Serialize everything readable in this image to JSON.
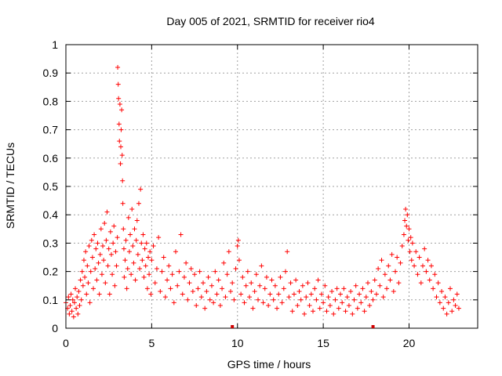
{
  "chart_data": {
    "type": "scatter",
    "title": "Day 005 of 2021, SRMTID for receiver rio4",
    "xlabel": "GPS time / hours",
    "ylabel": "SRMTID / TECUs",
    "xlim": [
      0,
      24
    ],
    "ylim": [
      0,
      1
    ],
    "xticks": [
      "0",
      "5",
      "10",
      "15",
      "20"
    ],
    "xtick_values": [
      0,
      5,
      10,
      15,
      20
    ],
    "yticks": [
      "0",
      "0.1",
      "0.2",
      "0.3",
      "0.4",
      "0.5",
      "0.6",
      "0.7",
      "0.8",
      "0.9",
      "1"
    ],
    "ytick_values": [
      0,
      0.1,
      0.2,
      0.3,
      0.4,
      0.5,
      0.6,
      0.7,
      0.8,
      0.9,
      1.0
    ],
    "grid": true,
    "marker": "+",
    "color": "#ff0000",
    "axis_markers_x": [
      9.7,
      17.9
    ],
    "series": [
      {
        "name": "SRMTID",
        "points": [
          [
            0.0,
            0.09
          ],
          [
            0.1,
            0.07
          ],
          [
            0.15,
            0.11
          ],
          [
            0.2,
            0.05
          ],
          [
            0.25,
            0.08
          ],
          [
            0.3,
            0.12
          ],
          [
            0.35,
            0.06
          ],
          [
            0.4,
            0.1
          ],
          [
            0.45,
            0.04
          ],
          [
            0.5,
            0.09
          ],
          [
            0.55,
            0.14
          ],
          [
            0.6,
            0.07
          ],
          [
            0.65,
            0.11
          ],
          [
            0.7,
            0.05
          ],
          [
            0.75,
            0.13
          ],
          [
            0.8,
            0.08
          ],
          [
            0.85,
            0.17
          ],
          [
            0.9,
            0.1
          ],
          [
            0.95,
            0.2
          ],
          [
            1.0,
            0.15
          ],
          [
            1.05,
            0.24
          ],
          [
            1.1,
            0.18
          ],
          [
            1.15,
            0.27
          ],
          [
            1.2,
            0.12
          ],
          [
            1.25,
            0.22
          ],
          [
            1.3,
            0.16
          ],
          [
            1.35,
            0.29
          ],
          [
            1.4,
            0.09
          ],
          [
            1.45,
            0.2
          ],
          [
            1.5,
            0.31
          ],
          [
            1.55,
            0.25
          ],
          [
            1.6,
            0.14
          ],
          [
            1.65,
            0.33
          ],
          [
            1.7,
            0.21
          ],
          [
            1.75,
            0.28
          ],
          [
            1.8,
            0.17
          ],
          [
            1.85,
            0.3
          ],
          [
            1.9,
            0.23
          ],
          [
            1.95,
            0.12
          ],
          [
            2.0,
            0.26
          ],
          [
            2.05,
            0.35
          ],
          [
            2.1,
            0.19
          ],
          [
            2.15,
            0.29
          ],
          [
            2.2,
            0.24
          ],
          [
            2.25,
            0.37
          ],
          [
            2.3,
            0.16
          ],
          [
            2.35,
            0.31
          ],
          [
            2.4,
            0.41
          ],
          [
            2.45,
            0.22
          ],
          [
            2.5,
            0.28
          ],
          [
            2.55,
            0.12
          ],
          [
            2.6,
            0.34
          ],
          [
            2.65,
            0.26
          ],
          [
            2.7,
            0.19
          ],
          [
            2.75,
            0.3
          ],
          [
            2.8,
            0.36
          ],
          [
            2.85,
            0.15
          ],
          [
            2.9,
            0.27
          ],
          [
            2.95,
            0.22
          ],
          [
            3.0,
            0.32
          ],
          [
            3.02,
            0.92
          ],
          [
            3.05,
            0.86
          ],
          [
            3.07,
            0.81
          ],
          [
            3.1,
            0.72
          ],
          [
            3.12,
            0.66
          ],
          [
            3.15,
            0.79
          ],
          [
            3.18,
            0.58
          ],
          [
            3.2,
            0.64
          ],
          [
            3.22,
            0.7
          ],
          [
            3.25,
            0.77
          ],
          [
            3.28,
            0.61
          ],
          [
            3.3,
            0.52
          ],
          [
            3.32,
            0.44
          ],
          [
            3.35,
            0.35
          ],
          [
            3.38,
            0.28
          ],
          [
            3.4,
            0.18
          ],
          [
            3.45,
            0.24
          ],
          [
            3.5,
            0.31
          ],
          [
            3.55,
            0.14
          ],
          [
            3.6,
            0.21
          ],
          [
            3.65,
            0.39
          ],
          [
            3.7,
            0.27
          ],
          [
            3.75,
            0.33
          ],
          [
            3.8,
            0.19
          ],
          [
            3.85,
            0.42
          ],
          [
            3.9,
            0.29
          ],
          [
            3.95,
            0.23
          ],
          [
            4.0,
            0.35
          ],
          [
            4.05,
            0.17
          ],
          [
            4.1,
            0.31
          ],
          [
            4.15,
            0.38
          ],
          [
            4.2,
            0.26
          ],
          [
            4.25,
            0.44
          ],
          [
            4.3,
            0.21
          ],
          [
            4.35,
            0.49
          ],
          [
            4.4,
            0.3
          ],
          [
            4.45,
            0.24
          ],
          [
            4.5,
            0.33
          ],
          [
            4.55,
            0.18
          ],
          [
            4.6,
            0.28
          ],
          [
            4.65,
            0.22
          ],
          [
            4.7,
            0.3
          ],
          [
            4.75,
            0.14
          ],
          [
            4.8,
            0.25
          ],
          [
            4.85,
            0.19
          ],
          [
            4.9,
            0.27
          ],
          [
            4.95,
            0.12
          ],
          [
            5.0,
            0.24
          ],
          [
            5.1,
            0.29
          ],
          [
            5.2,
            0.16
          ],
          [
            5.3,
            0.21
          ],
          [
            5.4,
            0.32
          ],
          [
            5.5,
            0.13
          ],
          [
            5.6,
            0.2
          ],
          [
            5.7,
            0.25
          ],
          [
            5.8,
            0.11
          ],
          [
            5.9,
            0.17
          ],
          [
            6.0,
            0.22
          ],
          [
            6.1,
            0.14
          ],
          [
            6.2,
            0.19
          ],
          [
            6.3,
            0.09
          ],
          [
            6.4,
            0.27
          ],
          [
            6.5,
            0.15
          ],
          [
            6.6,
            0.2
          ],
          [
            6.7,
            0.33
          ],
          [
            6.8,
            0.12
          ],
          [
            6.9,
            0.18
          ],
          [
            7.0,
            0.23
          ],
          [
            7.1,
            0.1
          ],
          [
            7.2,
            0.16
          ],
          [
            7.3,
            0.21
          ],
          [
            7.4,
            0.13
          ],
          [
            7.5,
            0.19
          ],
          [
            7.6,
            0.08
          ],
          [
            7.7,
            0.14
          ],
          [
            7.8,
            0.2
          ],
          [
            7.9,
            0.11
          ],
          [
            8.0,
            0.16
          ],
          [
            8.1,
            0.07
          ],
          [
            8.2,
            0.13
          ],
          [
            8.3,
            0.18
          ],
          [
            8.4,
            0.1
          ],
          [
            8.5,
            0.15
          ],
          [
            8.6,
            0.09
          ],
          [
            8.7,
            0.2
          ],
          [
            8.8,
            0.12
          ],
          [
            8.9,
            0.17
          ],
          [
            9.0,
            0.08
          ],
          [
            9.1,
            0.14
          ],
          [
            9.2,
            0.23
          ],
          [
            9.3,
            0.11
          ],
          [
            9.4,
            0.19
          ],
          [
            9.5,
            0.27
          ],
          [
            9.6,
            0.13
          ],
          [
            9.7,
            0.16
          ],
          [
            9.8,
            0.1
          ],
          [
            9.9,
            0.21
          ],
          [
            10.0,
            0.29
          ],
          [
            10.05,
            0.31
          ],
          [
            10.1,
            0.24
          ],
          [
            10.2,
            0.12
          ],
          [
            10.3,
            0.18
          ],
          [
            10.4,
            0.09
          ],
          [
            10.5,
            0.15
          ],
          [
            10.6,
            0.2
          ],
          [
            10.7,
            0.11
          ],
          [
            10.8,
            0.16
          ],
          [
            10.9,
            0.07
          ],
          [
            11.0,
            0.13
          ],
          [
            11.1,
            0.19
          ],
          [
            11.2,
            0.1
          ],
          [
            11.3,
            0.15
          ],
          [
            11.4,
            0.22
          ],
          [
            11.5,
            0.09
          ],
          [
            11.6,
            0.14
          ],
          [
            11.7,
            0.18
          ],
          [
            11.8,
            0.08
          ],
          [
            11.9,
            0.12
          ],
          [
            12.0,
            0.17
          ],
          [
            12.1,
            0.1
          ],
          [
            12.2,
            0.15
          ],
          [
            12.3,
            0.07
          ],
          [
            12.4,
            0.12
          ],
          [
            12.5,
            0.18
          ],
          [
            12.6,
            0.09
          ],
          [
            12.7,
            0.14
          ],
          [
            12.8,
            0.2
          ],
          [
            12.9,
            0.27
          ],
          [
            13.0,
            0.11
          ],
          [
            13.1,
            0.16
          ],
          [
            13.2,
            0.06
          ],
          [
            13.3,
            0.12
          ],
          [
            13.4,
            0.17
          ],
          [
            13.5,
            0.08
          ],
          [
            13.6,
            0.13
          ],
          [
            13.7,
            0.1
          ],
          [
            13.8,
            0.15
          ],
          [
            13.9,
            0.05
          ],
          [
            14.0,
            0.11
          ],
          [
            14.1,
            0.16
          ],
          [
            14.2,
            0.08
          ],
          [
            14.3,
            0.12
          ],
          [
            14.4,
            0.06
          ],
          [
            14.5,
            0.14
          ],
          [
            14.6,
            0.1
          ],
          [
            14.7,
            0.17
          ],
          [
            14.8,
            0.07
          ],
          [
            14.9,
            0.12
          ],
          [
            15.0,
            0.09
          ],
          [
            15.1,
            0.15
          ],
          [
            15.2,
            0.06
          ],
          [
            15.3,
            0.11
          ],
          [
            15.4,
            0.08
          ],
          [
            15.5,
            0.13
          ],
          [
            15.6,
            0.05
          ],
          [
            15.7,
            0.1
          ],
          [
            15.8,
            0.14
          ],
          [
            15.9,
            0.07
          ],
          [
            16.0,
            0.12
          ],
          [
            16.1,
            0.09
          ],
          [
            16.2,
            0.14
          ],
          [
            16.3,
            0.06
          ],
          [
            16.4,
            0.11
          ],
          [
            16.5,
            0.08
          ],
          [
            16.6,
            0.13
          ],
          [
            16.7,
            0.05
          ],
          [
            16.8,
            0.1
          ],
          [
            16.9,
            0.15
          ],
          [
            17.0,
            0.07
          ],
          [
            17.1,
            0.12
          ],
          [
            17.2,
            0.09
          ],
          [
            17.3,
            0.14
          ],
          [
            17.4,
            0.06
          ],
          [
            17.5,
            0.11
          ],
          [
            17.6,
            0.16
          ],
          [
            17.7,
            0.08
          ],
          [
            17.8,
            0.13
          ],
          [
            17.9,
            0.1
          ],
          [
            18.0,
            0.17
          ],
          [
            18.1,
            0.12
          ],
          [
            18.2,
            0.21
          ],
          [
            18.3,
            0.15
          ],
          [
            18.4,
            0.24
          ],
          [
            18.5,
            0.11
          ],
          [
            18.6,
            0.19
          ],
          [
            18.7,
            0.14
          ],
          [
            18.8,
            0.22
          ],
          [
            18.9,
            0.17
          ],
          [
            19.0,
            0.26
          ],
          [
            19.1,
            0.13
          ],
          [
            19.2,
            0.2
          ],
          [
            19.3,
            0.25
          ],
          [
            19.4,
            0.16
          ],
          [
            19.5,
            0.23
          ],
          [
            19.6,
            0.29
          ],
          [
            19.7,
            0.33
          ],
          [
            19.75,
            0.38
          ],
          [
            19.8,
            0.42
          ],
          [
            19.85,
            0.36
          ],
          [
            19.9,
            0.4
          ],
          [
            19.95,
            0.31
          ],
          [
            20.0,
            0.35
          ],
          [
            20.05,
            0.27
          ],
          [
            20.1,
            0.32
          ],
          [
            20.15,
            0.24
          ],
          [
            20.2,
            0.3
          ],
          [
            20.3,
            0.22
          ],
          [
            20.4,
            0.27
          ],
          [
            20.5,
            0.19
          ],
          [
            20.6,
            0.25
          ],
          [
            20.7,
            0.16
          ],
          [
            20.8,
            0.22
          ],
          [
            20.9,
            0.28
          ],
          [
            21.0,
            0.2
          ],
          [
            21.1,
            0.24
          ],
          [
            21.2,
            0.17
          ],
          [
            21.3,
            0.22
          ],
          [
            21.4,
            0.14
          ],
          [
            21.5,
            0.19
          ],
          [
            21.6,
            0.11
          ],
          [
            21.7,
            0.16
          ],
          [
            21.8,
            0.09
          ],
          [
            21.9,
            0.13
          ],
          [
            22.0,
            0.07
          ],
          [
            22.1,
            0.11
          ],
          [
            22.2,
            0.05
          ],
          [
            22.3,
            0.09
          ],
          [
            22.4,
            0.14
          ],
          [
            22.5,
            0.06
          ],
          [
            22.6,
            0.1
          ],
          [
            22.7,
            0.08
          ],
          [
            22.8,
            0.12
          ],
          [
            22.9,
            0.07
          ]
        ]
      }
    ]
  }
}
